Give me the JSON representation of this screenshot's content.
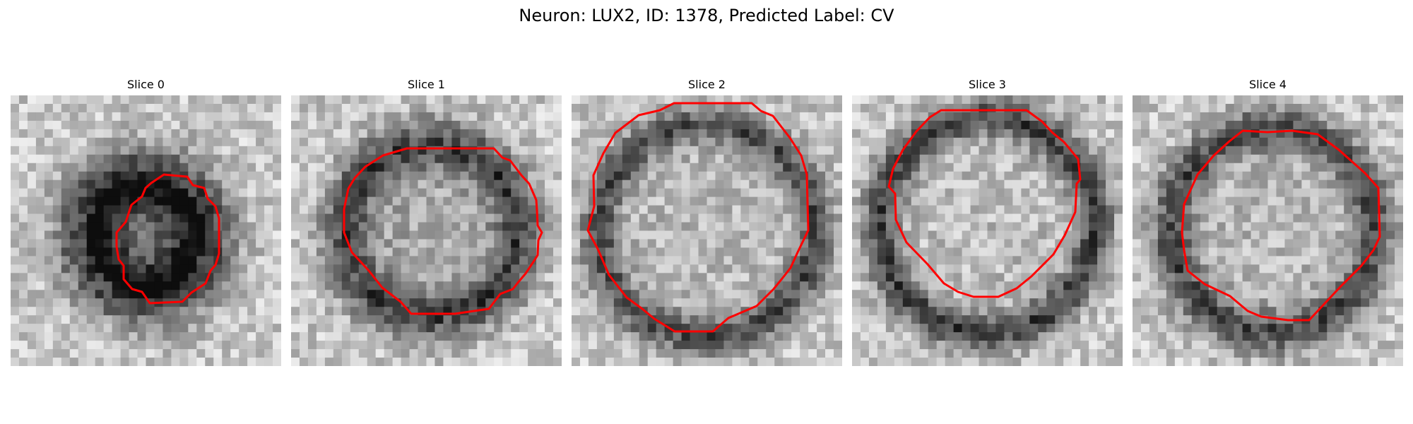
{
  "figure": {
    "title": "Neuron: LUX2, ID: 1378, Predicted Label: CV"
  },
  "panels": [
    {
      "title": "Slice 0"
    },
    {
      "title": "Slice 1"
    },
    {
      "title": "Slice 2"
    },
    {
      "title": "Slice 3"
    },
    {
      "title": "Slice 4"
    }
  ],
  "colors": {
    "contour": "#ff0000",
    "background": "#ffffff"
  }
}
